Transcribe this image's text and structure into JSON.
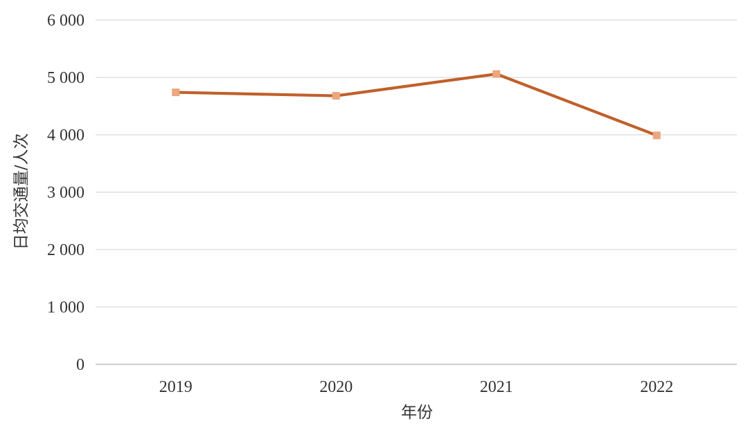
{
  "chart_data": {
    "type": "line",
    "categories": [
      "2019",
      "2020",
      "2021",
      "2022"
    ],
    "series": [
      {
        "values": [
          4740,
          4680,
          5060,
          3990
        ]
      }
    ],
    "title": "",
    "xlabel": "年份",
    "ylabel": "日均交通量/人次",
    "ylim": [
      0,
      6000
    ],
    "yticks": [
      0,
      1000,
      2000,
      3000,
      4000,
      5000,
      6000
    ],
    "ytick_labels": [
      "0",
      "1 000",
      "2 000",
      "3 000",
      "4 000",
      "5 000",
      "6 000"
    ],
    "grid": true,
    "legend": "none",
    "colors": {
      "line": "#C0602A",
      "marker": "#EBA77E",
      "grid": "#D9D9D9",
      "axis": "#BFBFBF",
      "text": "#333333"
    }
  }
}
